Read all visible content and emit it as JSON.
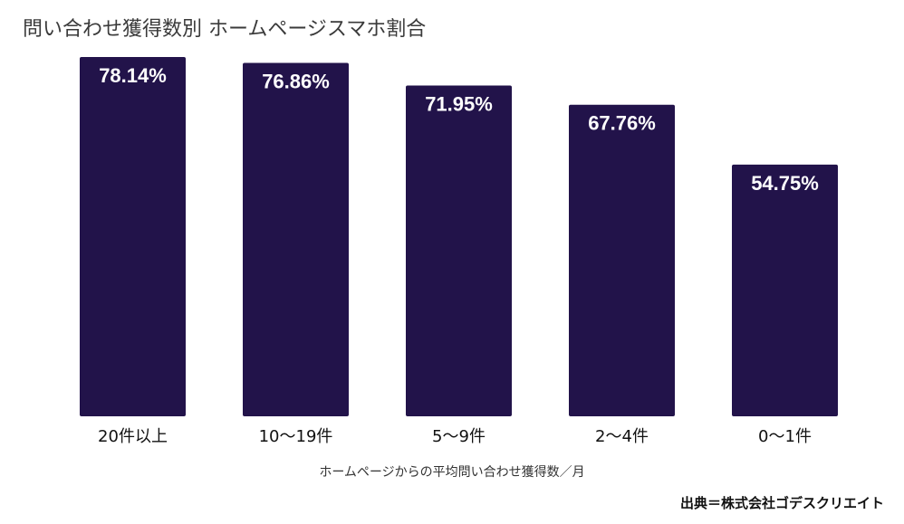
{
  "chart_data": {
    "type": "bar",
    "title": "問い合わせ獲得数別 ホームページスマホ割合",
    "xlabel": "ホームページからの平均問い合わせ獲得数／月",
    "ylabel": "",
    "categories": [
      "20件以上",
      "10〜19件",
      "5〜9件",
      "2〜4件",
      "0〜1件"
    ],
    "values": [
      78.14,
      76.86,
      71.95,
      67.76,
      54.75
    ],
    "data_labels": [
      "78.14%",
      "76.86%",
      "71.95%",
      "67.76%",
      "54.75%"
    ],
    "ylim": [
      0,
      78.14
    ],
    "grid": false,
    "legend": "none",
    "bar_color": "#22134a",
    "label_color": "#ffffff"
  },
  "source": "出典＝株式会社ゴデスクリエイト"
}
